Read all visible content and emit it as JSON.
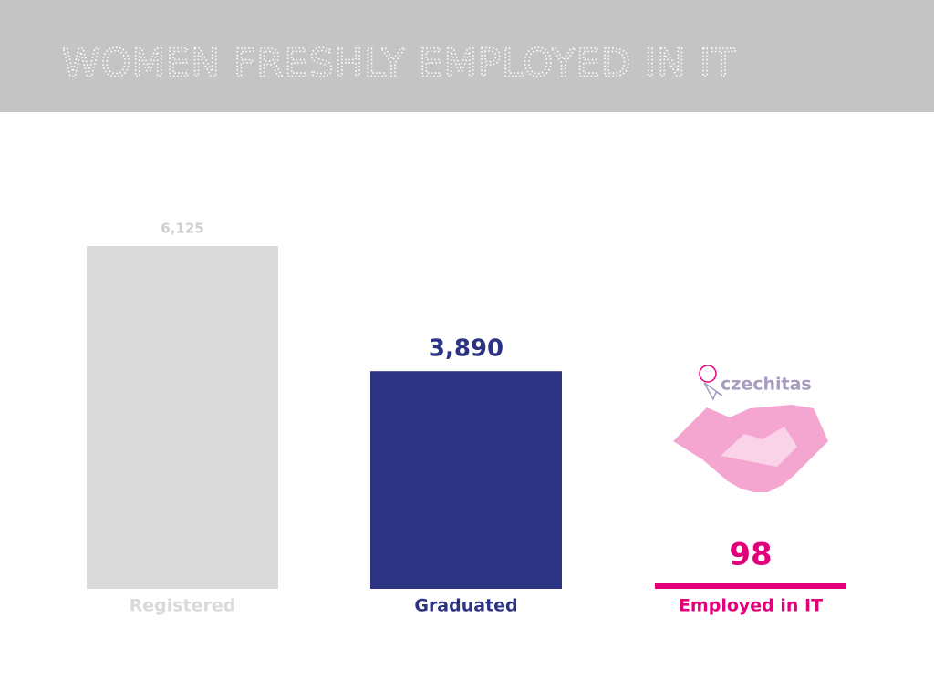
{
  "chart_data": {
    "type": "bar",
    "title": "WOMEN FRESHLY EMPLOYED IN IT",
    "categories": [
      "Registered",
      "Graduated",
      "Employed in IT"
    ],
    "values": [
      6125,
      3890,
      98
    ],
    "value_labels": [
      "6,125",
      "3,890",
      "98"
    ],
    "colors": [
      "#dadada",
      "#2c3383",
      "#e2007a"
    ],
    "logo": "czechitas"
  }
}
